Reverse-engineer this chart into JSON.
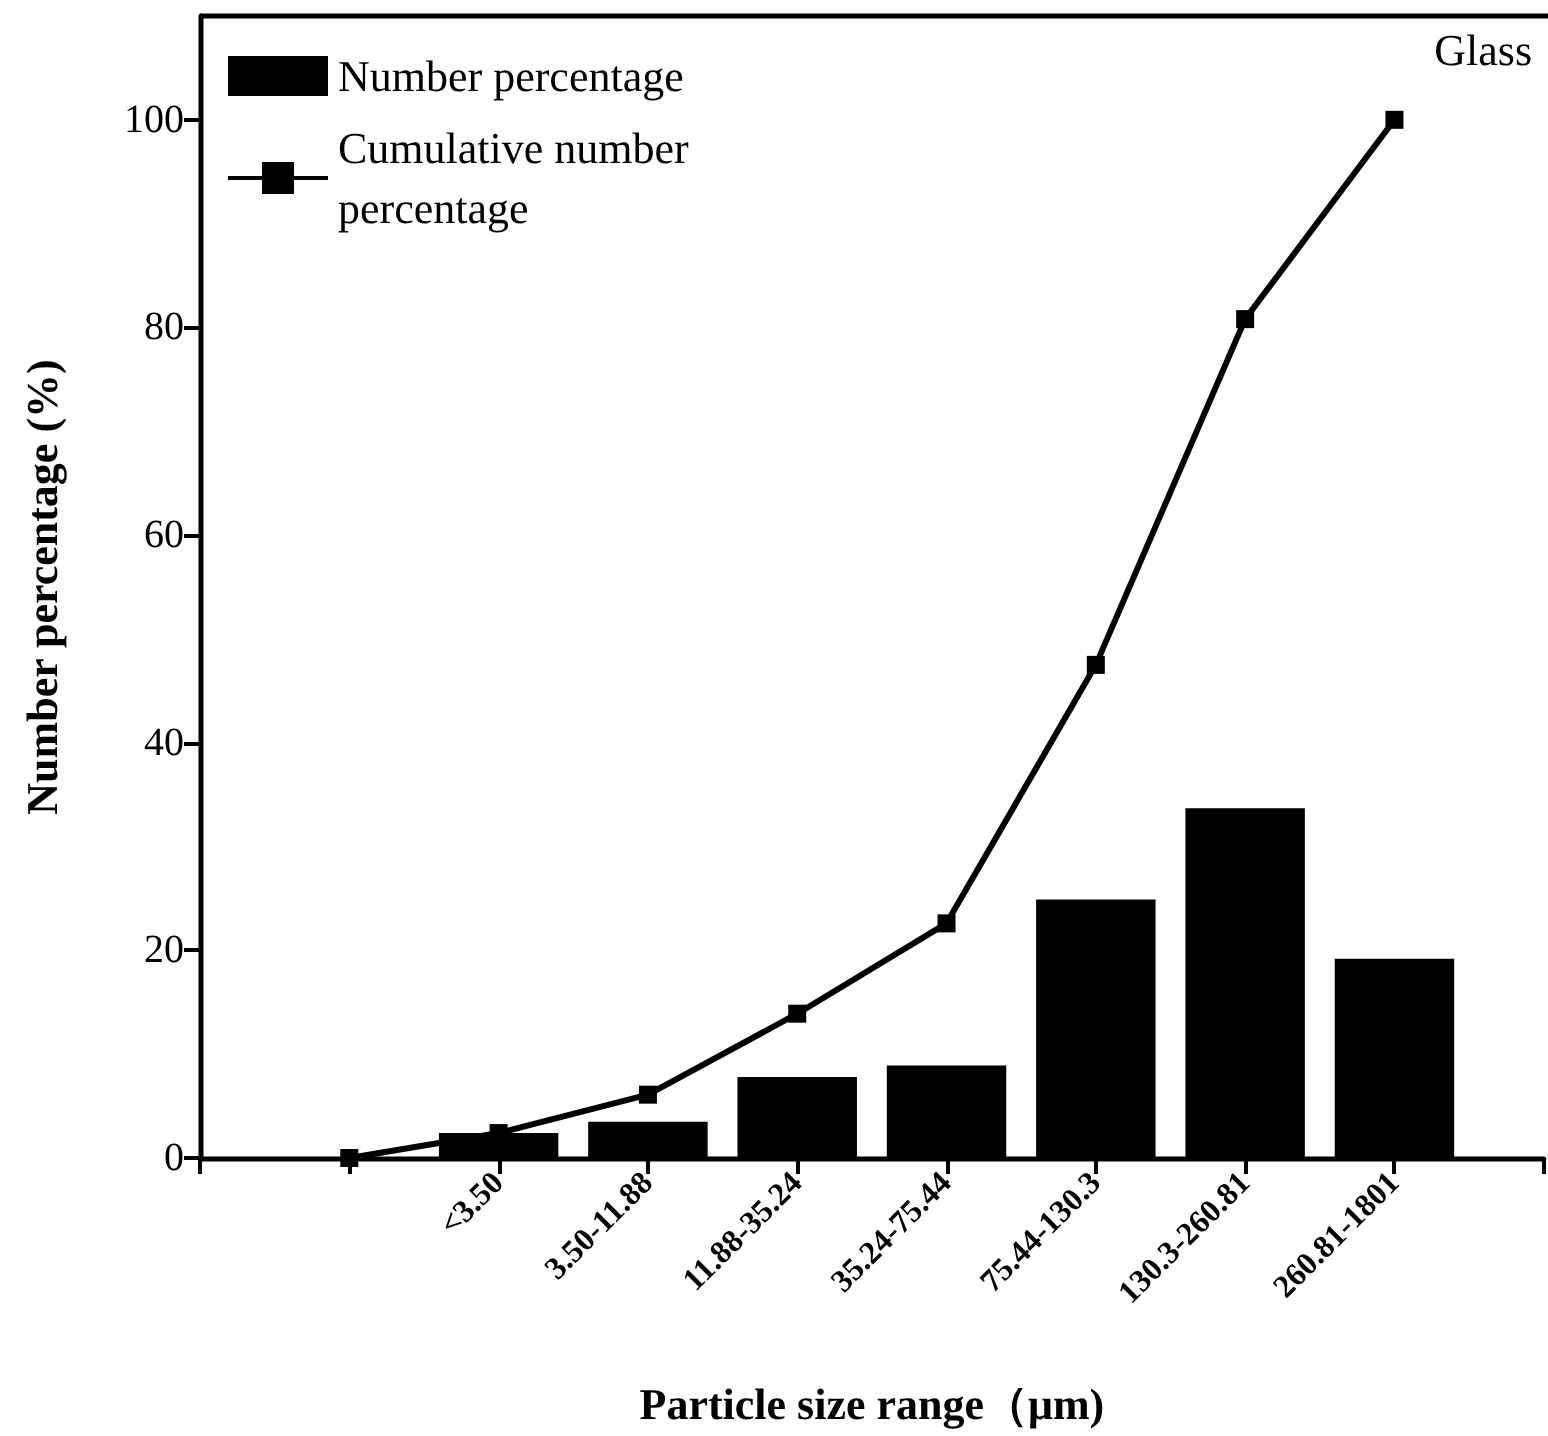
{
  "chart_data": {
    "type": "bar",
    "categories": [
      null,
      null,
      "<3.50",
      "3.50-11.88",
      "11.88-35.24",
      "35.24-75.44",
      "75.44-130.3",
      "130.3-260.81",
      "260.81-1801",
      null
    ],
    "series": [
      {
        "name": "Number percentage",
        "color": "#000000",
        "values": [
          null,
          null,
          2.4,
          3.5,
          7.8,
          8.9,
          24.9,
          33.7,
          19.2,
          null
        ]
      },
      {
        "name": "Cumulative number percentage",
        "type": "line",
        "color": "#000000",
        "marker": "square",
        "line_style": "solid",
        "values": [
          null,
          0,
          2.4,
          6.1,
          13.9,
          22.6,
          47.5,
          80.8,
          100,
          null
        ]
      }
    ],
    "xlabel": "Particle size range（μm)",
    "ylabel": "Number percentage (%)",
    "ylim": [
      0,
      110
    ],
    "yticks": [
      0,
      20,
      40,
      60,
      80,
      100
    ],
    "legend": "top left",
    "grid": false,
    "annotations": [
      "Glass"
    ]
  }
}
